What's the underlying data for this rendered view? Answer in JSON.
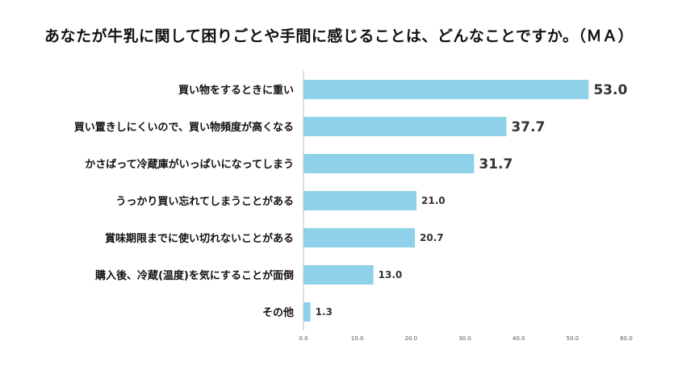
{
  "chart_data": {
    "type": "bar",
    "orientation": "horizontal",
    "title": "あなたが牛乳に関して困りごとや手間に感じることは、どんなことですか。（ＭＡ）",
    "categories": [
      "買い物をするときに重い",
      "買い置きしにくいので、買い物頻度が高くなる",
      "かさばって冷蔵庫がいっぱいになってしまう",
      "うっかり買い忘れてしまうことがある",
      "賞味期限までに使い切れないことがある",
      "購入後、冷蔵(温度)を気にすることが面倒",
      "その他"
    ],
    "values": [
      53.0,
      37.7,
      31.7,
      21.0,
      20.7,
      13.0,
      1.3
    ],
    "value_labels": [
      "53.0",
      "37.7",
      "31.7",
      "21.0",
      "20.7",
      "13.0",
      "1.3"
    ],
    "xlim": [
      0,
      60
    ],
    "xticks": [
      "0.0",
      "10.0",
      "20.0",
      "30.0",
      "40.0",
      "50.0",
      "60.0"
    ],
    "bar_color": "#8fd1e8",
    "axis_color": "#bfbfbf",
    "grid": false
  }
}
